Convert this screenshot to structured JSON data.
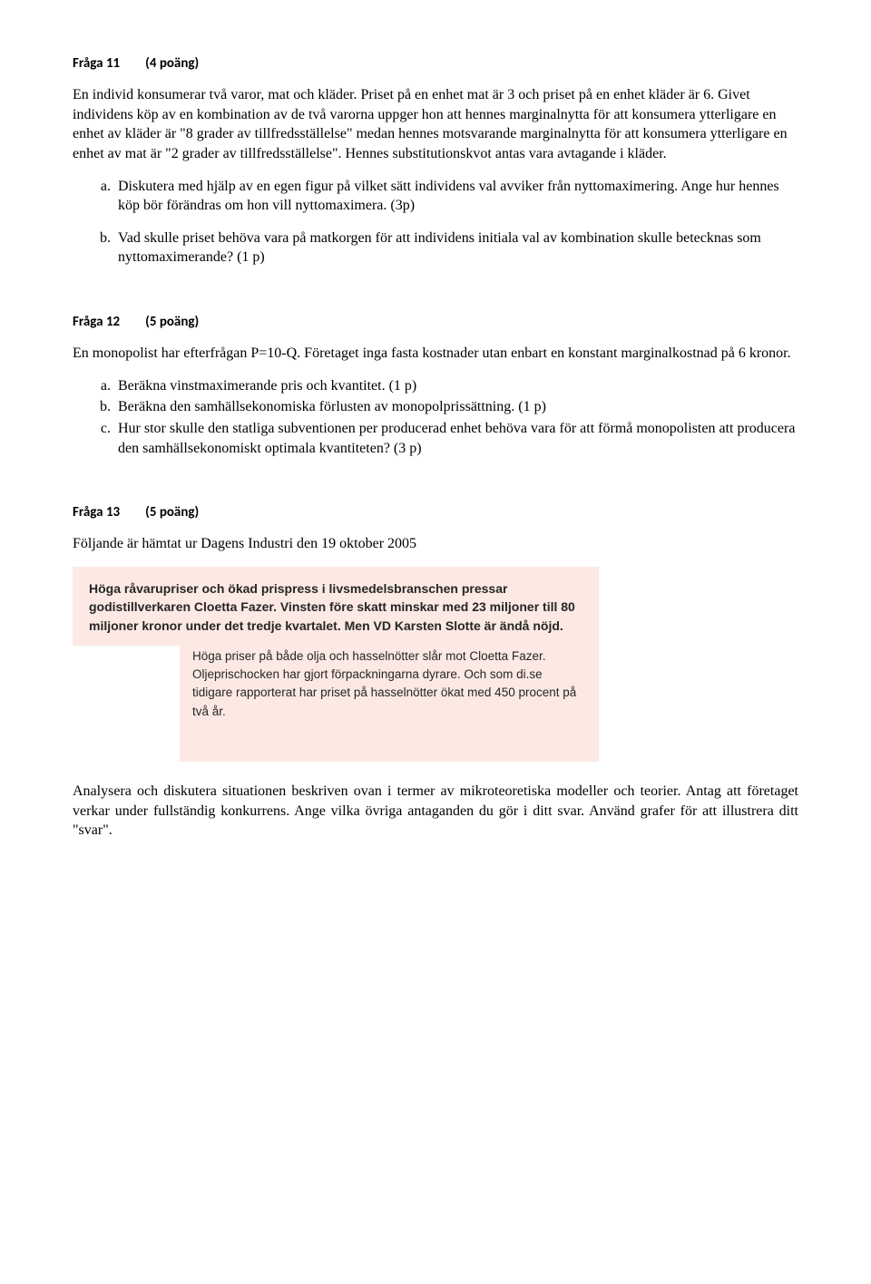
{
  "q11": {
    "label": "Fråga 11",
    "points": "(4 poäng)",
    "p1": "En individ konsumerar två varor, mat och kläder. Priset på en enhet mat är 3 och priset på en enhet kläder är 6. Givet individens köp av en kombination av de två varorna uppger hon att hennes marginalnytta för att konsumera ytterligare en enhet av kläder är \"8 grader av tillfredsställelse\" medan hennes motsvarande marginalnytta för att konsumera ytterligare en enhet av mat är \"2 grader av tillfredsställelse\". Hennes substitutionskvot antas vara avtagande i kläder.",
    "a": "Diskutera med hjälp av en egen figur på vilket sätt individens val avviker från nyttomaximering. Ange hur hennes köp bör förändras om hon vill nyttomaximera. (3p)",
    "b": "Vad skulle priset behöva vara på matkorgen för att individens initiala val av kombination skulle betecknas som nyttomaximerande?     (1 p)"
  },
  "q12": {
    "label": "Fråga 12",
    "points": "(5 poäng)",
    "p1": "En monopolist har efterfrågan P=10-Q. Företaget inga fasta kostnader utan enbart en konstant marginalkostnad på 6 kronor.",
    "a": "Beräkna vinstmaximerande pris och kvantitet.                                         (1 p)",
    "b": "Beräkna den samhällsekonomiska förlusten av monopolprissättning.    (1 p)",
    "c": "Hur stor skulle den statliga subventionen per producerad enhet behöva vara för att förmå monopolisten att producera den samhällsekonomiskt optimala kvantiteten? (3 p)"
  },
  "q13": {
    "label": "Fråga 13",
    "points": "(5 poäng)",
    "p1": "Följande är hämtat ur Dagens Industri den 19 oktober 2005",
    "clip_head": "Höga råvarupriser och ökad prispress i livsmedelsbranschen pressar godistillverkaren Cloetta Fazer. Vinsten före skatt minskar med 23 miljoner till 80 miljoner kronor under det tredje kvartalet. Men VD Karsten Slotte är ändå nöjd.",
    "clip_body": "Höga priser på både olja och hasselnötter slår mot Cloetta Fazer. Oljeprischocken har gjort förpackningarna dyrare. Och som di.se tidigare rapporterat har priset på hasselnötter ökat med 450 procent på två år.",
    "p2": "Analysera och diskutera situationen beskriven ovan i termer av mikroteoretiska modeller och teorier. Antag att företaget verkar under fullständig konkurrens. Ange vilka övriga antaganden du gör i ditt svar. Använd grafer för att illustrera ditt \"svar\"."
  }
}
